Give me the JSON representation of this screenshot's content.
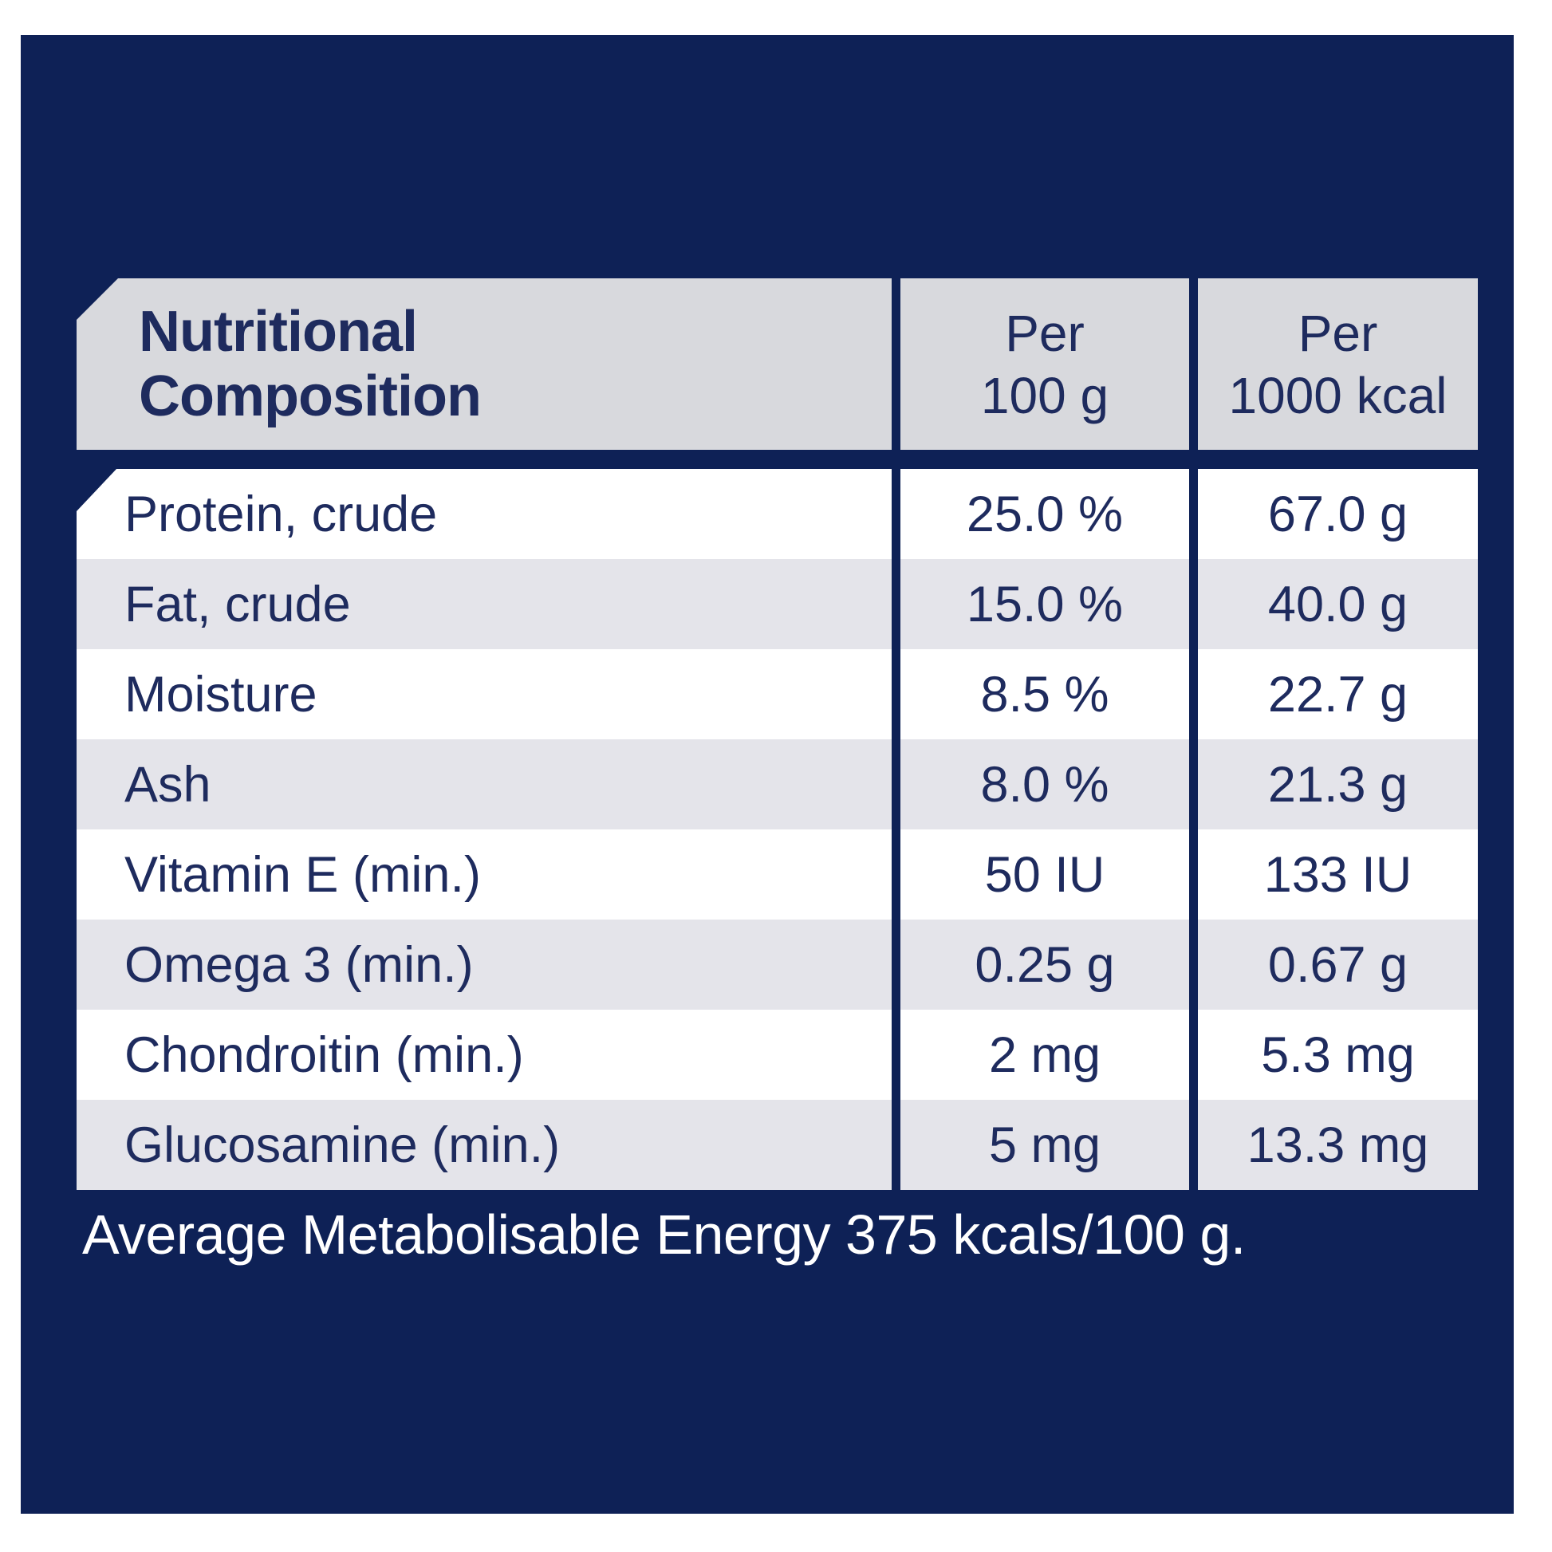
{
  "header": {
    "title_lines": [
      "Nutritional",
      "Composition"
    ],
    "col_per_100g": {
      "line1": "Per",
      "line2": "100 g"
    },
    "col_per_1000kcal": {
      "line1": "Per",
      "line2": "1000 kcal"
    }
  },
  "rows": [
    {
      "label": "Protein, crude",
      "per_100g": "25.0 %",
      "per_1000kcal": "67.0 g"
    },
    {
      "label": "Fat, crude",
      "per_100g": "15.0 %",
      "per_1000kcal": "40.0 g"
    },
    {
      "label": "Moisture",
      "per_100g": "8.5 %",
      "per_1000kcal": "22.7 g"
    },
    {
      "label": "Ash",
      "per_100g": "8.0 %",
      "per_1000kcal": "21.3 g"
    },
    {
      "label": "Vitamin E (min.)",
      "per_100g": "50 IU",
      "per_1000kcal": "133 IU"
    },
    {
      "label": "Omega 3 (min.)",
      "per_100g": "0.25 g",
      "per_1000kcal": "0.67 g"
    },
    {
      "label": "Chondroitin (min.)",
      "per_100g": "2 mg",
      "per_1000kcal": "5.3 mg"
    },
    {
      "label": "Glucosamine (min.)",
      "per_100g": "5 mg",
      "per_1000kcal": "13.3 mg"
    }
  ],
  "footer": {
    "text": "Average Metabolisable Energy 375 kcals/100 g."
  },
  "colors": {
    "panel_navy": "#0E2156",
    "table_ink": "#1E2B5E",
    "header_grey": "#D8D9DD",
    "row_grey": "#E4E4EA",
    "row_white": "#FFFFFF",
    "footer_text": "#FFFFFF"
  }
}
